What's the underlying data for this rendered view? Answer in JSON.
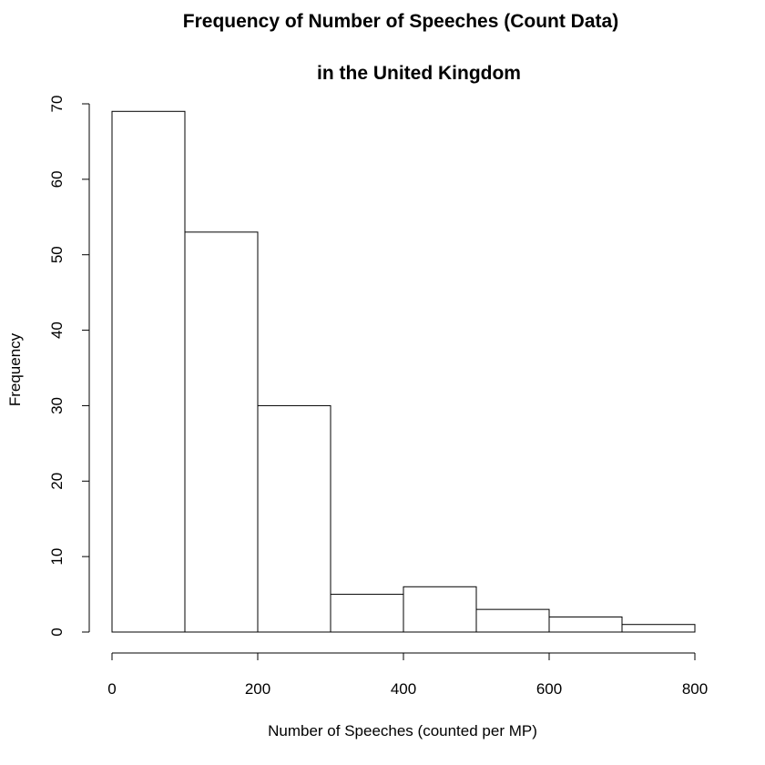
{
  "chart_data": {
    "type": "bar",
    "title_line1": "Frequency of Number of Speeches (Count Data)",
    "title_line2": "in the United Kingdom",
    "xlabel": "Number of Speeches (counted per MP)",
    "ylabel": "Frequency",
    "bins": [
      {
        "start": 0,
        "end": 100,
        "count": 69
      },
      {
        "start": 100,
        "end": 200,
        "count": 53
      },
      {
        "start": 200,
        "end": 300,
        "count": 30
      },
      {
        "start": 300,
        "end": 400,
        "count": 5
      },
      {
        "start": 400,
        "end": 500,
        "count": 6
      },
      {
        "start": 500,
        "end": 600,
        "count": 3
      },
      {
        "start": 600,
        "end": 700,
        "count": 2
      },
      {
        "start": 700,
        "end": 800,
        "count": 1
      }
    ],
    "xlim": [
      0,
      800
    ],
    "ylim": [
      0,
      70
    ],
    "x_ticks": [
      "0",
      "200",
      "400",
      "600",
      "800"
    ],
    "y_ticks": [
      "0",
      "10",
      "20",
      "30",
      "40",
      "50",
      "60",
      "70"
    ],
    "grid": false,
    "legend": "none",
    "colors": {
      "bar_fill": "#ffffff",
      "bar_stroke": "#000000"
    }
  }
}
